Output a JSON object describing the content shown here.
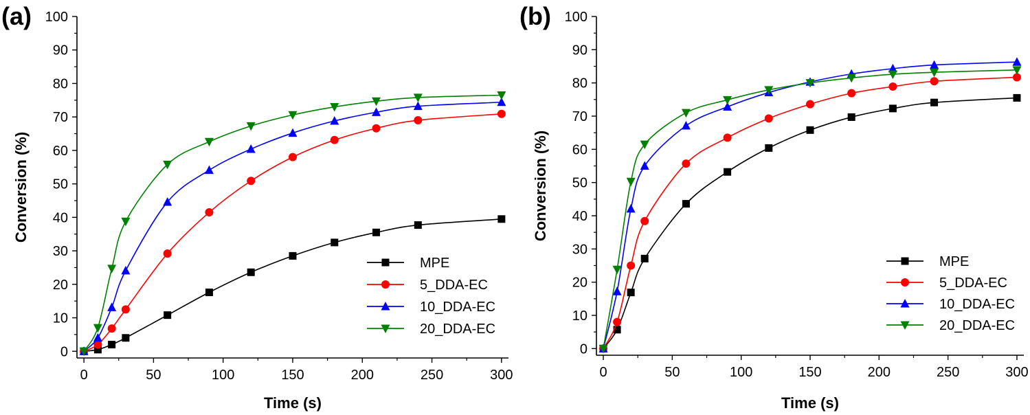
{
  "chart_data": [
    {
      "panel_label": "(a)",
      "type": "line",
      "xlabel": "Time (s)",
      "ylabel": "Conversion (%)",
      "xlim": [
        -5,
        305
      ],
      "ylim": [
        -2,
        100
      ],
      "xticks": [
        0,
        50,
        100,
        150,
        200,
        250,
        300
      ],
      "yticks": [
        0,
        10,
        20,
        30,
        40,
        50,
        60,
        70,
        80,
        90,
        100
      ],
      "legend_position": "bottom-right",
      "grid": false,
      "x": [
        0,
        10,
        20,
        30,
        60,
        90,
        120,
        150,
        180,
        210,
        240,
        300
      ],
      "series": [
        {
          "name": "MPE",
          "color": "#000000",
          "marker": "square",
          "values": [
            0,
            0.5,
            2,
            4,
            10.8,
            17.6,
            23.6,
            28.5,
            32.5,
            35.5,
            37.7,
            39.5
          ]
        },
        {
          "name": "5_DDA-EC",
          "color": "#ff0000",
          "marker": "circle",
          "values": [
            0,
            2,
            6.8,
            12.5,
            29.2,
            41.5,
            50.9,
            58,
            63.1,
            66.6,
            69,
            70.9
          ]
        },
        {
          "name": "10_DDA-EC",
          "color": "#0000ff",
          "marker": "triangle-up",
          "values": [
            0,
            4,
            13.1,
            24.1,
            44.6,
            54.1,
            60.4,
            65.2,
            68.8,
            71.4,
            73.2,
            74.4
          ]
        },
        {
          "name": "20_DDA-EC",
          "color": "#008000",
          "marker": "triangle-down",
          "values": [
            0,
            7,
            24.7,
            38.8,
            55.8,
            62.6,
            67.3,
            70.6,
            73,
            74.7,
            75.8,
            76.5
          ]
        }
      ]
    },
    {
      "panel_label": "(b)",
      "type": "line",
      "xlabel": "Time (s)",
      "ylabel": "Conversion (%)",
      "xlim": [
        -5,
        305
      ],
      "ylim": [
        -2,
        100
      ],
      "xticks": [
        0,
        50,
        100,
        150,
        200,
        250,
        300
      ],
      "yticks": [
        0,
        10,
        20,
        30,
        40,
        50,
        60,
        70,
        80,
        90,
        100
      ],
      "legend_position": "bottom-right",
      "grid": false,
      "x": [
        0,
        10,
        20,
        30,
        60,
        90,
        120,
        150,
        180,
        210,
        240,
        300
      ],
      "series": [
        {
          "name": "MPE",
          "color": "#000000",
          "marker": "square",
          "values": [
            0,
            5.7,
            16.9,
            27.1,
            43.6,
            53.2,
            60.4,
            65.8,
            69.7,
            72.3,
            74.1,
            75.5
          ]
        },
        {
          "name": "5_DDA-EC",
          "color": "#ff0000",
          "marker": "circle",
          "values": [
            0,
            8,
            25,
            38.4,
            55.7,
            63.5,
            69.3,
            73.6,
            76.9,
            78.9,
            80.5,
            81.7
          ]
        },
        {
          "name": "10_DDA-EC",
          "color": "#0000ff",
          "marker": "triangle-up",
          "values": [
            0,
            17.2,
            42.1,
            55,
            67.1,
            72.8,
            77.1,
            80.3,
            82.7,
            84.3,
            85.4,
            86.3
          ]
        },
        {
          "name": "20_DDA-EC",
          "color": "#008000",
          "marker": "triangle-down",
          "values": [
            0,
            23.8,
            50.3,
            61.5,
            71,
            74.9,
            77.9,
            80,
            81.5,
            82.6,
            83.2,
            83.9
          ]
        }
      ]
    }
  ]
}
